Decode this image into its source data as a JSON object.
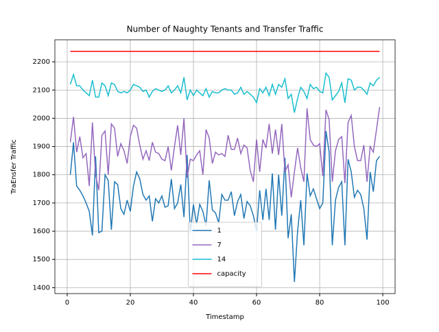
{
  "chart_data": {
    "type": "line",
    "title": "Number of Naughty Tenants and Transfer Traffic",
    "xlabel": "Timestamp",
    "ylabel": "TraEnsfer Traffic",
    "x": [
      1,
      2,
      3,
      4,
      5,
      6,
      7,
      8,
      9,
      10,
      11,
      12,
      13,
      14,
      15,
      16,
      17,
      18,
      19,
      20,
      21,
      22,
      23,
      24,
      25,
      26,
      27,
      28,
      29,
      30,
      31,
      32,
      33,
      34,
      35,
      36,
      37,
      38,
      39,
      40,
      41,
      42,
      43,
      44,
      45,
      46,
      47,
      48,
      49,
      50,
      51,
      52,
      53,
      54,
      55,
      56,
      57,
      58,
      59,
      60,
      61,
      62,
      63,
      64,
      65,
      66,
      67,
      68,
      69,
      70,
      71,
      72,
      73,
      74,
      75,
      76,
      77,
      78,
      79,
      80,
      81,
      82,
      83,
      84,
      85,
      86,
      87,
      88,
      89,
      90,
      91,
      92,
      93,
      94,
      95,
      96,
      97,
      98,
      99
    ],
    "series": [
      {
        "name": "1",
        "color": "#1f77b4",
        "values": [
          1800,
          1915,
          1760,
          1745,
          1725,
          1700,
          1670,
          1585,
          1865,
          1595,
          1600,
          1800,
          1780,
          1605,
          1775,
          1765,
          1680,
          1660,
          1710,
          1670,
          1760,
          1810,
          1785,
          1730,
          1710,
          1725,
          1635,
          1715,
          1700,
          1725,
          1685,
          1690,
          1785,
          1680,
          1700,
          1765,
          1650,
          1870,
          1595,
          1695,
          1625,
          1695,
          1670,
          1620,
          1780,
          1675,
          1665,
          1630,
          1730,
          1710,
          1710,
          1740,
          1655,
          1705,
          1730,
          1645,
          1705,
          1690,
          1655,
          1600,
          1745,
          1640,
          1750,
          1640,
          1805,
          1605,
          1800,
          1655,
          1860,
          1575,
          1660,
          1420,
          1600,
          1710,
          1550,
          1805,
          1725,
          1750,
          1715,
          1680,
          1700,
          1955,
          1880,
          1550,
          1710,
          1755,
          1775,
          1550,
          1855,
          1810,
          1720,
          1745,
          1730,
          1680,
          1570,
          1810,
          1740,
          1850,
          1865
        ]
      },
      {
        "name": "7",
        "color": "#9467bd",
        "values": [
          1915,
          2005,
          1880,
          1935,
          1860,
          1875,
          1760,
          1985,
          1800,
          1745,
          1940,
          1955,
          1800,
          1980,
          1965,
          1865,
          1910,
          1885,
          1840,
          1935,
          1975,
          1965,
          1905,
          1855,
          1885,
          1850,
          1915,
          1880,
          1875,
          1855,
          1850,
          1900,
          1815,
          1900,
          1975,
          1870,
          2000,
          1790,
          1855,
          1850,
          1870,
          1885,
          1800,
          1960,
          1930,
          1840,
          1880,
          1870,
          1875,
          1865,
          1940,
          1890,
          1890,
          1930,
          1875,
          1905,
          1895,
          1815,
          1775,
          1925,
          1810,
          1925,
          1895,
          1980,
          1875,
          1960,
          1870,
          1980,
          1810,
          1835,
          1720,
          1810,
          1895,
          1825,
          1775,
          2035,
          1925,
          1905,
          1900,
          1910,
          1795,
          2030,
          1995,
          1775,
          1885,
          1925,
          1935,
          1770,
          1985,
          2010,
          1900,
          1850,
          1850,
          1905,
          1775,
          1900,
          1880,
          1960,
          2040
        ]
      },
      {
        "name": "14",
        "color": "#17becf",
        "values": [
          2120,
          2155,
          2115,
          2115,
          2100,
          2090,
          2080,
          2135,
          2075,
          2075,
          2125,
          2115,
          2080,
          2125,
          2120,
          2095,
          2090,
          2095,
          2090,
          2100,
          2120,
          2115,
          2110,
          2095,
          2100,
          2075,
          2095,
          2105,
          2100,
          2095,
          2100,
          2115,
          2090,
          2100,
          2115,
          2090,
          2145,
          2065,
          2100,
          2080,
          2100,
          2090,
          2080,
          2105,
          2075,
          2095,
          2090,
          2090,
          2100,
          2105,
          2100,
          2100,
          2085,
          2090,
          2110,
          2085,
          2095,
          2085,
          2075,
          2055,
          2105,
          2090,
          2110,
          2080,
          2120,
          2085,
          2120,
          2110,
          2140,
          2070,
          2085,
          2020,
          2070,
          2110,
          2095,
          2070,
          2120,
          2105,
          2110,
          2095,
          2090,
          2160,
          2145,
          2065,
          2080,
          2095,
          2125,
          2055,
          2140,
          2135,
          2100,
          2110,
          2110,
          2100,
          2085,
          2125,
          2115,
          2135,
          2145
        ]
      },
      {
        "name": "capacity",
        "color": "#ff0000",
        "values": [
          2237,
          2237,
          2237,
          2237,
          2237,
          2237,
          2237,
          2237,
          2237,
          2237,
          2237,
          2237,
          2237,
          2237,
          2237,
          2237,
          2237,
          2237,
          2237,
          2237,
          2237,
          2237,
          2237,
          2237,
          2237,
          2237,
          2237,
          2237,
          2237,
          2237,
          2237,
          2237,
          2237,
          2237,
          2237,
          2237,
          2237,
          2237,
          2237,
          2237,
          2237,
          2237,
          2237,
          2237,
          2237,
          2237,
          2237,
          2237,
          2237,
          2237,
          2237,
          2237,
          2237,
          2237,
          2237,
          2237,
          2237,
          2237,
          2237,
          2237,
          2237,
          2237,
          2237,
          2237,
          2237,
          2237,
          2237,
          2237,
          2237,
          2237,
          2237,
          2237,
          2237,
          2237,
          2237,
          2237,
          2237,
          2237,
          2237,
          2237,
          2237,
          2237,
          2237,
          2237,
          2237,
          2237,
          2237,
          2237,
          2237,
          2237,
          2237,
          2237,
          2237,
          2237,
          2237,
          2237,
          2237,
          2237,
          2237
        ]
      }
    ],
    "xlim": [
      -3.9,
      103.9
    ],
    "ylim": [
      1379,
      2278
    ],
    "xticks": [
      0,
      20,
      40,
      60,
      80,
      100
    ],
    "yticks": [
      1400,
      1500,
      1600,
      1700,
      1800,
      1900,
      2000,
      2100,
      2200
    ],
    "grid": true,
    "legend": "lower center"
  }
}
